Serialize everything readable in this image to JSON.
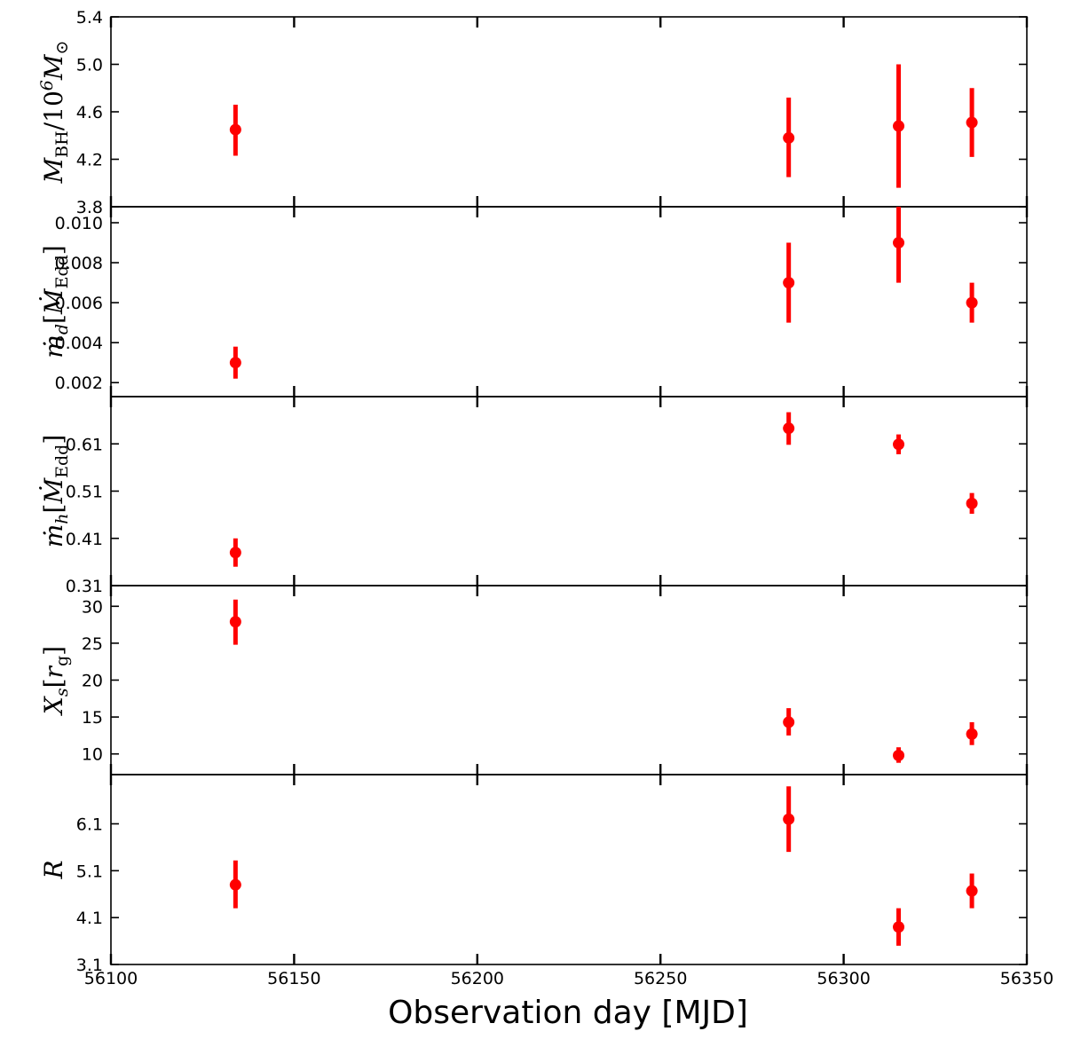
{
  "chart_data": {
    "type": "scatter",
    "errorbars": true,
    "marker_color": "#ff0000",
    "xlabel": "Observation day [MJD]",
    "xlim": [
      56100,
      56350
    ],
    "xticks": [
      56100,
      56150,
      56200,
      56250,
      56300,
      56350
    ],
    "panels": [
      {
        "id": "mbh",
        "ylabel_parts": [
          {
            "t": "M",
            "s": "normal"
          },
          {
            "t": "BH",
            "s": "sub-upright"
          },
          {
            "t": "/10",
            "s": "upright"
          },
          {
            "t": "6",
            "s": "sup"
          },
          {
            "t": "M",
            "s": "normal"
          },
          {
            "t": "⊙",
            "s": "sub-upright"
          }
        ],
        "ylim": [
          3.8,
          5.4
        ],
        "yticks": [
          "3.8",
          "4.2",
          "4.6",
          "5.0",
          "5.4"
        ],
        "points": [
          {
            "x": 56134,
            "y": 4.45,
            "lo": 4.23,
            "hi": 4.66
          },
          {
            "x": 56285,
            "y": 4.38,
            "lo": 4.05,
            "hi": 4.72
          },
          {
            "x": 56315,
            "y": 4.48,
            "lo": 3.96,
            "hi": 5.0
          },
          {
            "x": 56335,
            "y": 4.51,
            "lo": 4.22,
            "hi": 4.8
          }
        ]
      },
      {
        "id": "mdot-d",
        "ylabel_parts": [
          {
            "t": "ṁ",
            "s": "normal"
          },
          {
            "t": "d",
            "s": "sub"
          },
          {
            "t": "[",
            "s": "upright"
          },
          {
            "t": "Ṁ",
            "s": "normal"
          },
          {
            "t": "Edd",
            "s": "sub-upright"
          },
          {
            "t": "]",
            "s": "upright"
          }
        ],
        "ylim": [
          0.0013,
          0.0108
        ],
        "yticks": [
          "0.002",
          "0.004",
          "0.006",
          "0.008",
          "0.010"
        ],
        "points": [
          {
            "x": 56134,
            "y": 0.003,
            "lo": 0.0022,
            "hi": 0.0038
          },
          {
            "x": 56285,
            "y": 0.007,
            "lo": 0.005,
            "hi": 0.009
          },
          {
            "x": 56315,
            "y": 0.009,
            "lo": 0.007,
            "hi": 0.0108
          },
          {
            "x": 56335,
            "y": 0.006,
            "lo": 0.005,
            "hi": 0.007
          }
        ]
      },
      {
        "id": "mdot-h",
        "ylabel_parts": [
          {
            "t": "ṁ",
            "s": "normal"
          },
          {
            "t": "h",
            "s": "sub"
          },
          {
            "t": "[",
            "s": "upright"
          },
          {
            "t": "Ṁ",
            "s": "normal"
          },
          {
            "t": "Edd",
            "s": "sub-upright"
          },
          {
            "t": "]",
            "s": "upright"
          }
        ],
        "ylim": [
          0.31,
          0.71
        ],
        "yticks": [
          "0.31",
          "0.41",
          "0.51",
          "0.61"
        ],
        "points": [
          {
            "x": 56134,
            "y": 0.38,
            "lo": 0.35,
            "hi": 0.41
          },
          {
            "x": 56285,
            "y": 0.643,
            "lo": 0.608,
            "hi": 0.677
          },
          {
            "x": 56315,
            "y": 0.609,
            "lo": 0.588,
            "hi": 0.63
          },
          {
            "x": 56335,
            "y": 0.484,
            "lo": 0.462,
            "hi": 0.506
          }
        ]
      },
      {
        "id": "xs",
        "ylabel_parts": [
          {
            "t": "X",
            "s": "normal"
          },
          {
            "t": "s",
            "s": "sub"
          },
          {
            "t": "[",
            "s": "upright"
          },
          {
            "t": "r",
            "s": "normal"
          },
          {
            "t": "g",
            "s": "sub-upright"
          },
          {
            "t": "]",
            "s": "upright"
          }
        ],
        "ylim": [
          7.2,
          32.8
        ],
        "yticks": [
          "10",
          "15",
          "20",
          "25",
          "30"
        ],
        "points": [
          {
            "x": 56134,
            "y": 27.9,
            "lo": 24.8,
            "hi": 30.9
          },
          {
            "x": 56285,
            "y": 14.3,
            "lo": 12.5,
            "hi": 16.2
          },
          {
            "x": 56315,
            "y": 9.8,
            "lo": 8.8,
            "hi": 10.9
          },
          {
            "x": 56335,
            "y": 12.7,
            "lo": 11.2,
            "hi": 14.3
          }
        ]
      },
      {
        "id": "r",
        "ylabel_parts": [
          {
            "t": "R",
            "s": "normal"
          }
        ],
        "ylim": [
          3.1,
          7.15
        ],
        "yticks": [
          "3.1",
          "4.1",
          "5.1",
          "6.1"
        ],
        "points": [
          {
            "x": 56134,
            "y": 4.8,
            "lo": 4.3,
            "hi": 5.32
          },
          {
            "x": 56285,
            "y": 6.2,
            "lo": 5.5,
            "hi": 6.9
          },
          {
            "x": 56315,
            "y": 3.9,
            "lo": 3.5,
            "hi": 4.3
          },
          {
            "x": 56335,
            "y": 4.67,
            "lo": 4.3,
            "hi": 5.04
          }
        ]
      }
    ]
  }
}
